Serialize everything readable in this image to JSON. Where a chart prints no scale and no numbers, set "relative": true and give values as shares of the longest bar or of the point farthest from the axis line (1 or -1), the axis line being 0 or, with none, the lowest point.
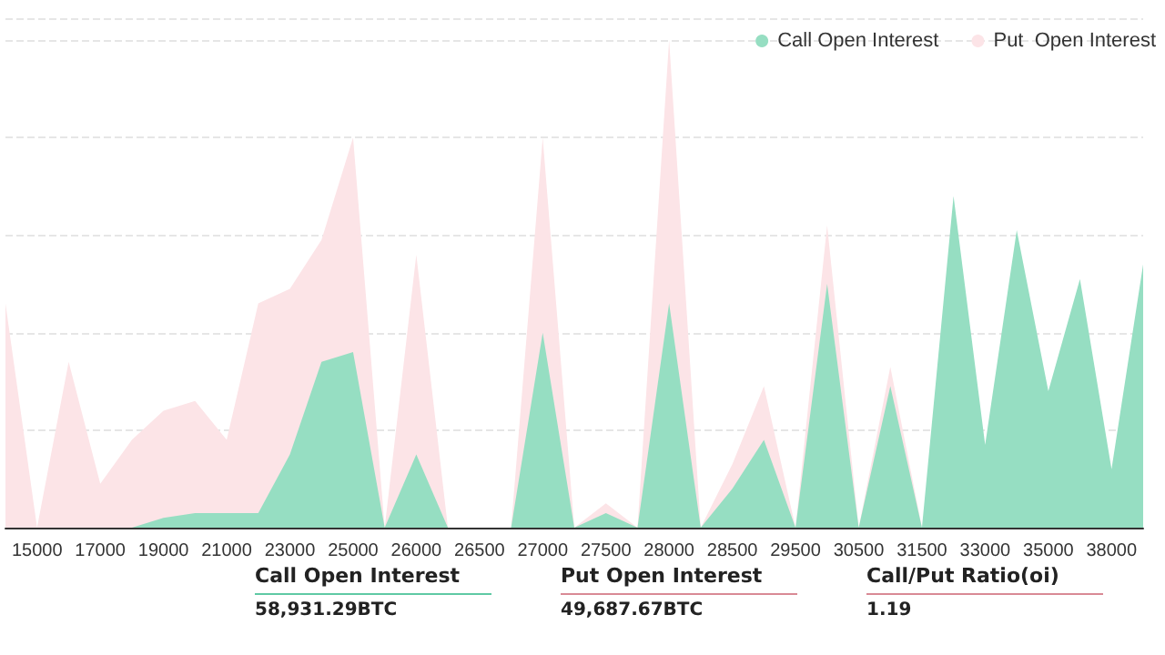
{
  "chart_data": {
    "type": "area",
    "relative": true,
    "grid": "y",
    "legend": "top right",
    "marker": "none",
    "categories": [
      null,
      "15000",
      null,
      "17000",
      null,
      "19000",
      null,
      "21000",
      null,
      "23000",
      null,
      "25000",
      null,
      "26000",
      null,
      "26500",
      null,
      "27000",
      null,
      "27500",
      null,
      "28000",
      null,
      "28500",
      null,
      "29500",
      null,
      "30500",
      null,
      "31500",
      null,
      "33000",
      null,
      "35000",
      null,
      "38000",
      null
    ],
    "series": [
      {
        "name": "Call Open Interest",
        "color": "#96dec2",
        "values": [
          0,
          0,
          0,
          0,
          0,
          0.02,
          0.03,
          0.03,
          0.03,
          0.15,
          0.34,
          0.36,
          0,
          0.15,
          0,
          0,
          0,
          0.4,
          0,
          0.03,
          0,
          0.46,
          0,
          0.08,
          0.18,
          0,
          0.5,
          0,
          0.29,
          0,
          0.68,
          0.17,
          0.61,
          0.28,
          0.51,
          0.12,
          0.54
        ]
      },
      {
        "name": "Put  Open Interest",
        "color": "#fce4e7",
        "values": [
          0.46,
          0,
          0.34,
          0.09,
          0.18,
          0.24,
          0.26,
          0.18,
          0.46,
          0.49,
          0.59,
          0.8,
          0,
          0.56,
          0,
          0,
          0,
          0.8,
          0,
          0.05,
          0,
          1,
          0,
          0.13,
          0.29,
          0,
          0.62,
          0,
          0.33,
          0,
          null,
          null,
          null,
          null,
          null,
          null,
          null
        ]
      }
    ],
    "annotations": [
      "Call Open Interest",
      "58,931.29BTC",
      "Put Open Interest",
      "49,687.67BTC",
      "Call/Put Ratio(oi)",
      "1.19"
    ]
  }
}
